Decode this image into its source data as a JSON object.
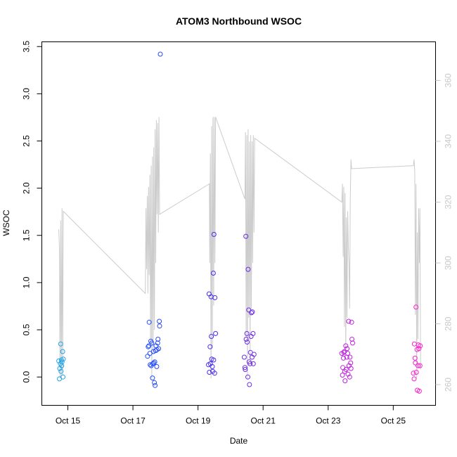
{
  "chart_data": {
    "type": "scatter",
    "title": "ATOM3 Northbound WSOC",
    "xlabel": "Date",
    "ylabel": "WSOC",
    "x_unit": "days (October)",
    "xlim": [
      14.2,
      26.3
    ],
    "ylim": [
      -0.3,
      3.55
    ],
    "x_ticks": [
      {
        "value": 15,
        "label": "Oct 15"
      },
      {
        "value": 17,
        "label": "Oct 17"
      },
      {
        "value": 19,
        "label": "Oct 19"
      },
      {
        "value": 21,
        "label": "Oct 21"
      },
      {
        "value": 23,
        "label": "Oct 23"
      },
      {
        "value": 25,
        "label": "Oct 25"
      }
    ],
    "y_ticks": [
      "0.0",
      "0.5",
      "1.0",
      "1.5",
      "2.0",
      "2.5",
      "3.0",
      "3.5"
    ],
    "y2_ticks": [
      "260",
      "280",
      "300",
      "320",
      "340",
      "360"
    ],
    "y2_lim": [
      253.2,
      372.7
    ],
    "grid": false,
    "colors": {
      "axis": "#000000",
      "secondary_axis": "#c8c8c8",
      "line": "#cccccc",
      "point_gradient": [
        "#1ea8e6",
        "#1a5cff",
        "#3c2df0",
        "#8a2be2",
        "#c020e0",
        "#ff1ecc"
      ]
    },
    "series": [
      {
        "marker": "open-circle",
        "points": [
          [
            14.72,
            0.17
          ],
          [
            14.74,
            -0.02
          ],
          [
            14.75,
            0.09
          ],
          [
            14.77,
            0.14
          ],
          [
            14.78,
            0.35
          ],
          [
            14.79,
            0.06
          ],
          [
            14.8,
            0.18
          ],
          [
            14.81,
            0.12
          ],
          [
            14.82,
            0.16
          ],
          [
            14.84,
            0.27
          ],
          [
            14.85,
            0.0
          ],
          [
            14.86,
            0.19
          ],
          [
            17.45,
            0.22
          ],
          [
            17.47,
            0.32
          ],
          [
            17.49,
            0.33
          ],
          [
            17.5,
            0.58
          ],
          [
            17.52,
            0.25
          ],
          [
            17.53,
            0.13
          ],
          [
            17.55,
            0.38
          ],
          [
            17.56,
            0.12
          ],
          [
            17.58,
            0.36
          ],
          [
            17.6,
            -0.01
          ],
          [
            17.61,
            0.14
          ],
          [
            17.63,
            0.27
          ],
          [
            17.64,
            0.15
          ],
          [
            17.66,
            -0.06
          ],
          [
            17.67,
            0.16
          ],
          [
            17.68,
            -0.09
          ],
          [
            17.7,
            0.28
          ],
          [
            17.71,
            0.33
          ],
          [
            17.73,
            0.11
          ],
          [
            17.74,
            0.29
          ],
          [
            17.76,
            0.36
          ],
          [
            17.77,
            0.4
          ],
          [
            17.79,
            0.3
          ],
          [
            17.81,
            0.59
          ],
          [
            17.82,
            0.54
          ],
          [
            17.84,
            3.42
          ],
          [
            19.32,
            0.13
          ],
          [
            19.34,
            0.88
          ],
          [
            19.35,
            0.05
          ],
          [
            19.37,
            0.32
          ],
          [
            19.38,
            0.14
          ],
          [
            19.4,
            0.85
          ],
          [
            19.41,
            0.43
          ],
          [
            19.42,
            0.19
          ],
          [
            19.44,
            0.11
          ],
          [
            19.45,
            0.06
          ],
          [
            19.47,
            1.1
          ],
          [
            19.48,
            0.18
          ],
          [
            19.49,
            1.51
          ],
          [
            19.51,
            0.04
          ],
          [
            19.52,
            0.84
          ],
          [
            19.54,
            0.46
          ],
          [
            20.42,
            0.21
          ],
          [
            20.44,
            0.1
          ],
          [
            20.45,
            0.08
          ],
          [
            20.47,
            1.49
          ],
          [
            20.48,
            0.4
          ],
          [
            20.5,
            0.46
          ],
          [
            20.51,
            0.37
          ],
          [
            20.53,
            0.0
          ],
          [
            20.54,
            1.14
          ],
          [
            20.56,
            0.71
          ],
          [
            20.57,
            0.16
          ],
          [
            20.58,
            -0.08
          ],
          [
            20.6,
            0.14
          ],
          [
            20.61,
            0.26
          ],
          [
            20.63,
            0.43
          ],
          [
            20.64,
            0.68
          ],
          [
            20.66,
            0.21
          ],
          [
            20.67,
            0.69
          ],
          [
            20.69,
            0.46
          ],
          [
            20.7,
            0.14
          ],
          [
            20.72,
            0.24
          ],
          [
            23.42,
            0.25
          ],
          [
            23.44,
            0.02
          ],
          [
            23.45,
            0.1
          ],
          [
            23.47,
            0.2
          ],
          [
            23.48,
            0.26
          ],
          [
            23.5,
            0.27
          ],
          [
            23.51,
            0.06
          ],
          [
            23.52,
            -0.04
          ],
          [
            23.54,
            0.33
          ],
          [
            23.55,
            0.08
          ],
          [
            23.57,
            0.21
          ],
          [
            23.58,
            0.3
          ],
          [
            23.6,
            0.25
          ],
          [
            23.61,
            0.03
          ],
          [
            23.63,
            0.59
          ],
          [
            23.64,
            0.12
          ],
          [
            23.66,
            0.0
          ],
          [
            23.67,
            0.21
          ],
          [
            23.69,
            0.15
          ],
          [
            23.7,
            0.09
          ],
          [
            23.72,
            0.58
          ],
          [
            23.73,
            0.4
          ],
          [
            23.75,
            0.36
          ],
          [
            25.62,
            0.04
          ],
          [
            25.64,
            -0.02
          ],
          [
            25.65,
            0.35
          ],
          [
            25.67,
            0.2
          ],
          [
            25.68,
            0.15
          ],
          [
            25.7,
            0.74
          ],
          [
            25.71,
            0.05
          ],
          [
            25.73,
            0.29
          ],
          [
            25.74,
            -0.14
          ],
          [
            25.76,
            0.12
          ],
          [
            25.77,
            0.34
          ],
          [
            25.79,
            0.3
          ],
          [
            25.8,
            -0.15
          ],
          [
            25.82,
            0.12
          ],
          [
            25.83,
            0.33
          ]
        ]
      },
      {
        "marker": "line",
        "axis": "right",
        "points": [
          [
            14.72,
            311
          ],
          [
            14.74,
            305
          ],
          [
            14.76,
            262
          ],
          [
            14.78,
            314
          ],
          [
            14.8,
            262
          ],
          [
            14.82,
            318
          ],
          [
            14.84,
            263
          ],
          [
            14.86,
            317
          ],
          [
            17.38,
            290
          ],
          [
            17.4,
            318
          ],
          [
            17.42,
            298
          ],
          [
            17.44,
            322
          ],
          [
            17.46,
            290
          ],
          [
            17.48,
            325
          ],
          [
            17.5,
            296
          ],
          [
            17.52,
            329
          ],
          [
            17.54,
            272
          ],
          [
            17.56,
            332
          ],
          [
            17.58,
            262
          ],
          [
            17.6,
            335
          ],
          [
            17.62,
            270
          ],
          [
            17.64,
            338
          ],
          [
            17.66,
            278
          ],
          [
            17.68,
            344
          ],
          [
            17.7,
            300
          ],
          [
            17.72,
            347
          ],
          [
            17.74,
            316
          ],
          [
            17.76,
            346
          ],
          [
            17.78,
            310
          ],
          [
            17.8,
            348
          ],
          [
            17.82,
            316
          ],
          [
            19.35,
            326
          ],
          [
            19.36,
            300
          ],
          [
            19.38,
            336
          ],
          [
            19.4,
            262
          ],
          [
            19.42,
            345
          ],
          [
            19.44,
            272
          ],
          [
            19.46,
            348
          ],
          [
            19.48,
            286
          ],
          [
            19.5,
            348
          ],
          [
            19.52,
            300
          ],
          [
            19.54,
            348
          ],
          [
            20.44,
            321
          ],
          [
            20.46,
            343
          ],
          [
            20.48,
            275
          ],
          [
            20.5,
            342
          ],
          [
            20.52,
            262
          ],
          [
            20.54,
            344
          ],
          [
            20.56,
            282
          ],
          [
            20.58,
            340
          ],
          [
            20.6,
            268
          ],
          [
            20.62,
            342
          ],
          [
            20.64,
            285
          ],
          [
            20.66,
            340
          ],
          [
            20.68,
            300
          ],
          [
            20.7,
            342
          ],
          [
            20.72,
            310
          ],
          [
            20.74,
            341
          ],
          [
            23.42,
            320
          ],
          [
            23.44,
            326
          ],
          [
            23.46,
            302
          ],
          [
            23.48,
            325
          ],
          [
            23.5,
            279
          ],
          [
            23.52,
            323
          ],
          [
            23.54,
            270
          ],
          [
            23.56,
            315
          ],
          [
            23.58,
            282
          ],
          [
            23.6,
            317
          ],
          [
            23.62,
            305
          ],
          [
            23.64,
            300
          ],
          [
            23.66,
            285
          ],
          [
            23.68,
            321
          ],
          [
            23.7,
            334
          ],
          [
            23.72,
            331
          ],
          [
            25.62,
            332
          ],
          [
            25.64,
            334
          ],
          [
            25.66,
            330
          ],
          [
            25.68,
            283
          ],
          [
            25.7,
            326
          ],
          [
            25.72,
            262
          ],
          [
            25.74,
            310
          ],
          [
            25.76,
            275
          ],
          [
            25.78,
            318
          ],
          [
            25.8,
            300
          ],
          [
            25.82,
            318
          ],
          [
            25.84,
            265
          ]
        ]
      }
    ]
  }
}
